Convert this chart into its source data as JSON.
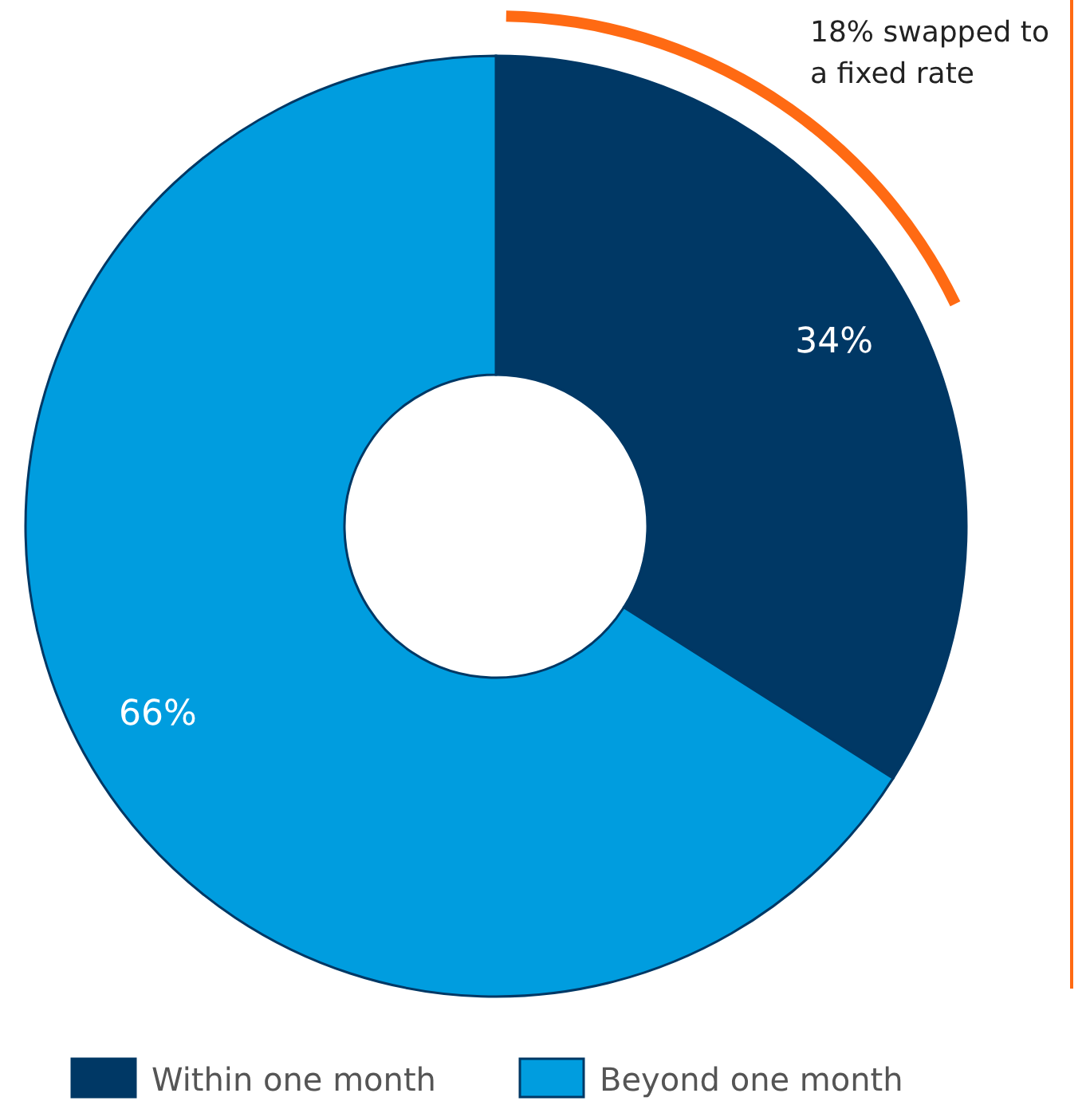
{
  "chart_data": {
    "type": "donut",
    "categories": [
      "Within one month",
      "Beyond one month"
    ],
    "values": [
      34,
      66
    ],
    "colors": [
      "#003865",
      "#009ddf"
    ],
    "value_labels": [
      "34%",
      "66%"
    ],
    "legend": "bottom",
    "annotations": [
      "18% swapped to a fixed rate"
    ]
  }
}
